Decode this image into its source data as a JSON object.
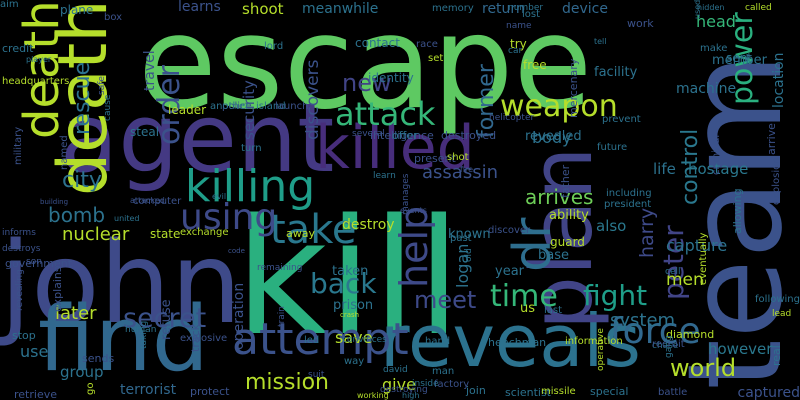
{
  "colors": {
    "background": "#000000",
    "palette": [
      "#440154",
      "#482878",
      "#3e4a89",
      "#31688e",
      "#26828e",
      "#1f9e89",
      "#35b779",
      "#6ece58",
      "#b5de2b",
      "#fde725"
    ]
  },
  "words": [
    {
      "t": "escape",
      "c": "#5ec962"
    },
    {
      "t": "kill",
      "c": "#2ab07f"
    },
    {
      "t": "team",
      "c": "#3b528b"
    },
    {
      "t": "john",
      "c": "#3e4a89"
    },
    {
      "t": "agent",
      "c": "#443983"
    },
    {
      "t": "find",
      "c": "#31688e"
    },
    {
      "t": "reveals",
      "c": "#2c728e"
    },
    {
      "t": "death",
      "c": "#b5de2b"
    },
    {
      "t": "killed",
      "c": "#472d7b"
    },
    {
      "t": "plan",
      "c": "#414487"
    },
    {
      "t": "attempt",
      "c": "#3b528b"
    },
    {
      "t": "killing",
      "c": "#1f9e89"
    },
    {
      "t": "take",
      "c": "#2a788e"
    },
    {
      "t": "help",
      "c": "#3e4a89"
    },
    {
      "t": "attack",
      "c": "#35b779"
    },
    {
      "t": "dr",
      "c": "#2e6e8e"
    },
    {
      "t": "using",
      "c": "#3e4a89"
    },
    {
      "t": "peter",
      "c": "#414487"
    },
    {
      "t": "force",
      "c": "#31688e"
    },
    {
      "t": "power",
      "c": "#2ab07f"
    },
    {
      "t": "weapon",
      "c": "#b5de2b"
    },
    {
      "t": "secret",
      "c": "#3b528b"
    },
    {
      "t": "fight",
      "c": "#1f9e89"
    },
    {
      "t": "back",
      "c": "#2a788e"
    },
    {
      "t": "time",
      "c": "#35b779"
    },
    {
      "t": "mission",
      "c": "#b5de2b"
    },
    {
      "t": "world",
      "c": "#b5de2b"
    },
    {
      "t": "order",
      "c": "#3b528b"
    },
    {
      "t": "meet",
      "c": "#3e4a89"
    },
    {
      "t": "bomb",
      "c": "#2c728e"
    },
    {
      "t": "control",
      "c": "#2a788e"
    },
    {
      "t": "city",
      "c": "#2c728e"
    },
    {
      "t": "rescue",
      "c": "#2c728e"
    },
    {
      "t": "new",
      "c": "#414487"
    },
    {
      "t": "former",
      "c": "#31688e"
    },
    {
      "t": "shoot",
      "c": "#b5de2b"
    },
    {
      "t": "death",
      "c": "#b5de2b"
    },
    {
      "t": "learns",
      "c": "#3b528b"
    },
    {
      "t": "meanwhile",
      "c": "#2c728e"
    },
    {
      "t": "return",
      "c": "#31688e"
    },
    {
      "t": "device",
      "c": "#31688e"
    },
    {
      "t": "head",
      "c": "#35b779"
    },
    {
      "t": "machine",
      "c": "#2c728e"
    },
    {
      "t": "assassin",
      "c": "#3b528b"
    },
    {
      "t": "arrives",
      "c": "#6ece58"
    },
    {
      "t": "harry",
      "c": "#3e4a89"
    },
    {
      "t": "capture",
      "c": "#2c728e"
    },
    {
      "t": "nuclear",
      "c": "#b5de2b"
    },
    {
      "t": "hostage",
      "c": "#2a788e"
    },
    {
      "t": "life",
      "c": "#2c728e"
    },
    {
      "t": "body",
      "c": "#2c728e"
    },
    {
      "t": "system",
      "c": "#2c728e"
    },
    {
      "t": "logan",
      "c": "#2c728e"
    },
    {
      "t": "later",
      "c": "#b5de2b"
    },
    {
      "t": "men",
      "c": "#b5de2b"
    },
    {
      "t": "save",
      "c": "#b5de2b"
    },
    {
      "t": "give",
      "c": "#b5de2b"
    },
    {
      "t": "group",
      "c": "#2c728e"
    },
    {
      "t": "use",
      "c": "#2c728e"
    },
    {
      "t": "terrorist",
      "c": "#31688e"
    },
    {
      "t": "captured",
      "c": "#3b528b"
    },
    {
      "t": "however",
      "c": "#2a788e"
    },
    {
      "t": "also",
      "c": "#2a788e"
    },
    {
      "t": "discovers",
      "c": "#3b528b"
    },
    {
      "t": "security",
      "c": "#3b528b"
    },
    {
      "t": "travel",
      "c": "#3b528b"
    },
    {
      "t": "location",
      "c": "#2c728e"
    },
    {
      "t": "member",
      "c": "#2c728e"
    },
    {
      "t": "facility",
      "c": "#2c728e"
    },
    {
      "t": "base",
      "c": "#2c728e"
    },
    {
      "t": "year",
      "c": "#2c728e"
    },
    {
      "t": "revealed",
      "c": "#2c728e"
    },
    {
      "t": "destroy",
      "c": "#b5de2b"
    },
    {
      "t": "known",
      "c": "#2c728e"
    },
    {
      "t": "guard",
      "c": "#b5de2b"
    },
    {
      "t": "ability",
      "c": "#b5de2b"
    },
    {
      "t": "us",
      "c": "#b5de2b"
    },
    {
      "t": "prison",
      "c": "#2c728e"
    },
    {
      "t": "taken",
      "c": "#2c728e"
    },
    {
      "t": "operation",
      "c": "#3b528b"
    },
    {
      "t": "stop",
      "c": "#2c728e"
    },
    {
      "t": "state",
      "c": "#b5de2b"
    },
    {
      "t": "exchange",
      "c": "#b5de2b"
    },
    {
      "t": "leader",
      "c": "#b5de2b"
    },
    {
      "t": "contact",
      "c": "#2c728e"
    },
    {
      "t": "free",
      "c": "#b5de2b"
    },
    {
      "t": "try",
      "c": "#b5de2b"
    },
    {
      "t": "sent",
      "c": "#2c728e"
    },
    {
      "t": "plane",
      "c": "#2c728e"
    },
    {
      "t": "box",
      "c": "#3b528b"
    },
    {
      "t": "memory",
      "c": "#2c728e"
    },
    {
      "t": "identity",
      "c": "#2c728e"
    },
    {
      "t": "steal",
      "c": "#2c728e"
    },
    {
      "t": "police",
      "c": "#3b528b"
    },
    {
      "t": "island",
      "c": "#2c728e"
    },
    {
      "t": "launch",
      "c": "#3b528b"
    },
    {
      "t": "another",
      "c": "#2c728e"
    },
    {
      "t": "explains",
      "c": "#3b528b"
    },
    {
      "t": "revealing",
      "c": "#3b528b"
    },
    {
      "t": "retrieve",
      "c": "#3b528b"
    },
    {
      "t": "government",
      "c": "#3b528b"
    },
    {
      "t": "named",
      "c": "#3b528b"
    },
    {
      "t": "military",
      "c": "#3b528b"
    },
    {
      "t": "building",
      "c": "#3b528b"
    },
    {
      "t": "computer",
      "c": "#3b528b"
    },
    {
      "t": "united",
      "c": "#2c728e"
    },
    {
      "t": "refuse",
      "c": "#3b528b"
    },
    {
      "t": "track",
      "c": "#3b528b"
    },
    {
      "t": "explosive",
      "c": "#3b528b"
    },
    {
      "t": "human",
      "c": "#2c728e"
    },
    {
      "t": "protect",
      "c": "#3b528b"
    },
    {
      "t": "sends",
      "c": "#3b528b"
    },
    {
      "t": "way",
      "c": "#2c728e"
    },
    {
      "t": "led",
      "c": "#2c728e"
    },
    {
      "t": "crash",
      "c": "#b5de2b"
    },
    {
      "t": "factory",
      "c": "#3b528b"
    },
    {
      "t": "man",
      "c": "#2c728e"
    },
    {
      "t": "join",
      "c": "#2c728e"
    },
    {
      "t": "hand",
      "c": "#2c728e"
    },
    {
      "t": "henchman",
      "c": "#2c728e"
    },
    {
      "t": "information",
      "c": "#b5de2b"
    },
    {
      "t": "scientist",
      "c": "#2c728e"
    },
    {
      "t": "missile",
      "c": "#b5de2b"
    },
    {
      "t": "special",
      "c": "#2c728e"
    },
    {
      "t": "diamond",
      "c": "#b5de2b"
    },
    {
      "t": "battle",
      "c": "#3b528b"
    },
    {
      "t": "following",
      "c": "#2c728e"
    },
    {
      "t": "lead",
      "c": "#b5de2b"
    },
    {
      "t": "real",
      "c": "#2c728e"
    },
    {
      "t": "gang",
      "c": "#2c728e"
    },
    {
      "t": "cell",
      "c": "#2c728e"
    },
    {
      "t": "eventually",
      "c": "#b5de2b"
    },
    {
      "t": "allowing",
      "c": "#2c728e"
    },
    {
      "t": "including",
      "c": "#2c728e"
    },
    {
      "t": "president",
      "c": "#2c728e"
    },
    {
      "t": "future",
      "c": "#2c728e"
    },
    {
      "t": "prevent",
      "c": "#2c728e"
    },
    {
      "t": "criminal",
      "c": "#3b528b"
    },
    {
      "t": "arrive",
      "c": "#3b528b"
    },
    {
      "t": "explosion",
      "c": "#3b528b"
    },
    {
      "t": "father",
      "c": "#3b528b"
    },
    {
      "t": "mercenary",
      "c": "#3b528b"
    },
    {
      "t": "helicopter",
      "c": "#3b528b"
    },
    {
      "t": "intelligence",
      "c": "#3b528b"
    },
    {
      "t": "destroyed",
      "c": "#3b528b"
    },
    {
      "t": "offer",
      "c": "#2c728e"
    },
    {
      "t": "several",
      "c": "#3b528b"
    },
    {
      "t": "turn",
      "c": "#2c728e"
    },
    {
      "t": "present",
      "c": "#3b528b"
    },
    {
      "t": "learn",
      "c": "#2c728e"
    },
    {
      "t": "shot",
      "c": "#b5de2b"
    },
    {
      "t": "fire",
      "c": "#3b528b"
    },
    {
      "t": "past",
      "c": "#2c728e"
    },
    {
      "t": "away",
      "c": "#b5de2b"
    },
    {
      "t": "evil",
      "c": "#2c728e"
    },
    {
      "t": "discover",
      "c": "#3b528b"
    },
    {
      "t": "operative",
      "c": "#b5de2b"
    },
    {
      "t": "chase",
      "c": "#2c728e"
    },
    {
      "t": "recruit",
      "c": "#3b528b"
    },
    {
      "t": "name",
      "c": "#3b528b"
    },
    {
      "t": "set",
      "c": "#b5de2b"
    },
    {
      "t": "race",
      "c": "#3b528b"
    },
    {
      "t": "lord",
      "c": "#2c728e"
    },
    {
      "t": "tell",
      "c": "#2c728e"
    },
    {
      "t": "make",
      "c": "#2c728e"
    },
    {
      "t": "work",
      "c": "#3b528b"
    },
    {
      "t": "called",
      "c": "#b5de2b"
    },
    {
      "t": "hidden",
      "c": "#2c728e"
    },
    {
      "t": "number",
      "c": "#2c728e"
    },
    {
      "t": "lost",
      "c": "#2c728e"
    },
    {
      "t": "credit",
      "c": "#2c728e"
    },
    {
      "t": "player",
      "c": "#2c728e"
    },
    {
      "t": "headquarters",
      "c": "#b5de2b"
    },
    {
      "t": "safe",
      "c": "#3b528b"
    },
    {
      "t": "cause",
      "c": "#2c728e"
    },
    {
      "t": "destroys",
      "c": "#3b528b"
    },
    {
      "t": "informs",
      "c": "#3b528b"
    },
    {
      "t": "son",
      "c": "#3b528b"
    },
    {
      "t": "code",
      "c": "#3b528b"
    },
    {
      "t": "remaining",
      "c": "#3b528b"
    },
    {
      "t": "suit",
      "c": "#3b528b"
    },
    {
      "t": "inside",
      "c": "#2c728e"
    },
    {
      "t": "manages",
      "c": "#3b528b"
    },
    {
      "t": "events",
      "c": "#3b528b"
    },
    {
      "t": "old",
      "c": "#2c728e"
    },
    {
      "t": "david",
      "c": "#2c728e"
    },
    {
      "t": "working",
      "c": "#b5de2b"
    },
    {
      "t": "high",
      "c": "#2c728e"
    },
    {
      "t": "destroying",
      "c": "#3b528b"
    },
    {
      "t": "convinces",
      "c": "#2c728e"
    },
    {
      "t": "car",
      "c": "#2c728e"
    },
    {
      "t": "last",
      "c": "#2c728e"
    },
    {
      "t": "go",
      "c": "#b5de2b"
    },
    {
      "t": "train",
      "c": "#3b528b"
    },
    {
      "t": "taking",
      "c": "#2c728e"
    },
    {
      "t": "used",
      "c": "#2c728e"
    },
    {
      "t": "attacked",
      "c": "#3b528b"
    },
    {
      "t": "aim",
      "c": "#2c728e"
    }
  ]
}
